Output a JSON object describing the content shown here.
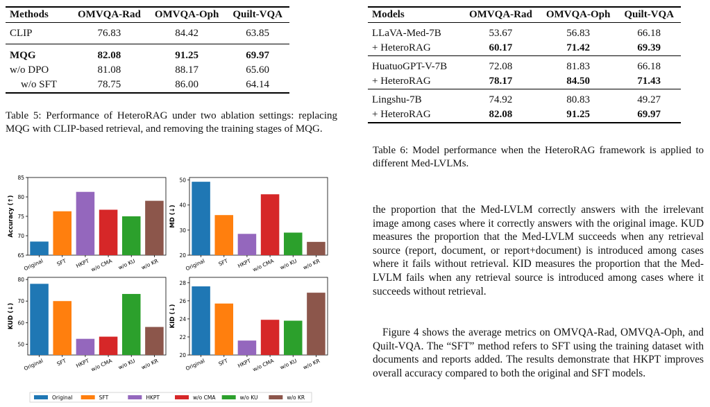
{
  "table5": {
    "headers": [
      "Methods",
      "OMVQA-Rad",
      "OMVQA-Oph",
      "Quilt-VQA"
    ],
    "rows": [
      {
        "method": "CLIP",
        "rad": "76.83",
        "oph": "84.42",
        "quilt": "63.85"
      },
      {
        "method": "MQG",
        "rad": "82.08",
        "oph": "91.25",
        "quilt": "69.97"
      },
      {
        "method": "w/o DPO",
        "rad": "81.08",
        "oph": "88.17",
        "quilt": "65.60"
      },
      {
        "method": "w/o SFT",
        "rad": "78.75",
        "oph": "86.00",
        "quilt": "64.14"
      }
    ],
    "caption": "Table 5: Performance of HeteroRAG under two ablation settings: replacing MQG with CLIP-based retrieval, and removing the training stages of MQG."
  },
  "table6": {
    "headers": [
      "Models",
      "OMVQA-Rad",
      "OMVQA-Oph",
      "Quilt-VQA"
    ],
    "rows": [
      {
        "model": "LLaVA-Med-7B",
        "rad": "53.67",
        "oph": "56.83",
        "quilt": "66.18"
      },
      {
        "model": "+ HeteroRAG",
        "rad": "60.17",
        "oph": "71.42",
        "quilt": "69.39"
      },
      {
        "model": "HuatuoGPT-V-7B",
        "rad": "72.08",
        "oph": "81.83",
        "quilt": "66.18"
      },
      {
        "model": "+ HeteroRAG",
        "rad": "78.17",
        "oph": "84.50",
        "quilt": "71.43"
      },
      {
        "model": "Lingshu-7B",
        "rad": "74.92",
        "oph": "80.83",
        "quilt": "49.27"
      },
      {
        "model": "+ HeteroRAG",
        "rad": "82.08",
        "oph": "91.25",
        "quilt": "69.97"
      }
    ],
    "caption": "Table 6: Model performance when the HeteroRAG framework is applied to different Med-LVLMs."
  },
  "body": {
    "para1": "the proportion that the Med-LVLM correctly answers with the irrelevant image among cases where it correctly answers with the original image. KUD measures the proportion that the Med-LVLM succeeds when any retrieval source (report, document, or report+document) is introduced among cases where it fails without retrieval. KID measures the proportion that the Med-LVLM fails when any retrieval source is introduced among cases where it succeeds without retrieval.",
    "para2": "Figure 4 shows the average metrics on OMVQA-Rad, OMVQA-Oph, and Quilt-VQA. The “SFT” method refers to SFT using the training dataset with documents and reports added. The results demonstrate that HKPT improves overall accuracy compared to both the original and SFT models."
  },
  "colors": {
    "Original": "#1f77b4",
    "SFT": "#ff7f0e",
    "HKPT": "#9467bd",
    "w/o CMA": "#d62728",
    "w/o KU": "#2ca02c",
    "w/o KR": "#8c564b"
  },
  "chart_data": [
    {
      "type": "bar",
      "ylabel": "Accuracy (↑)",
      "categories": [
        "Original",
        "SFT",
        "HKPT",
        "w/o CMA",
        "w/o KU",
        "w/o KR"
      ],
      "values": [
        68.5,
        76.3,
        81.3,
        76.7,
        75.0,
        79.0
      ],
      "ylim": [
        65,
        85
      ],
      "yticks": [
        65,
        70,
        75,
        80,
        85
      ]
    },
    {
      "type": "bar",
      "ylabel": "MD (↓)",
      "categories": [
        "Original",
        "SFT",
        "HKPT",
        "w/o CMA",
        "w/o KU",
        "w/o KR"
      ],
      "values": [
        49.3,
        36.0,
        28.5,
        44.3,
        29.0,
        25.3
      ],
      "ylim": [
        20,
        51
      ],
      "yticks": [
        20,
        30,
        40,
        50
      ]
    },
    {
      "type": "bar",
      "ylabel": "KUD (↓)",
      "categories": [
        "Original",
        "SFT",
        "HKPT",
        "w/o CMA",
        "w/o KU",
        "w/o KR"
      ],
      "values": [
        78.0,
        70.0,
        52.5,
        53.5,
        73.3,
        58.0
      ],
      "ylim": [
        45,
        81
      ],
      "yticks": [
        50,
        60,
        70,
        80
      ]
    },
    {
      "type": "bar",
      "ylabel": "KID (↓)",
      "categories": [
        "Original",
        "SFT",
        "HKPT",
        "w/o CMA",
        "w/o KU",
        "w/o KR"
      ],
      "values": [
        27.6,
        25.7,
        21.6,
        23.9,
        23.8,
        26.9
      ],
      "ylim": [
        20,
        28.6
      ],
      "yticks": [
        20,
        22,
        24,
        26,
        28
      ]
    }
  ],
  "legend": [
    "Original",
    "SFT",
    "HKPT",
    "w/o CMA",
    "w/o KU",
    "w/o KR"
  ]
}
